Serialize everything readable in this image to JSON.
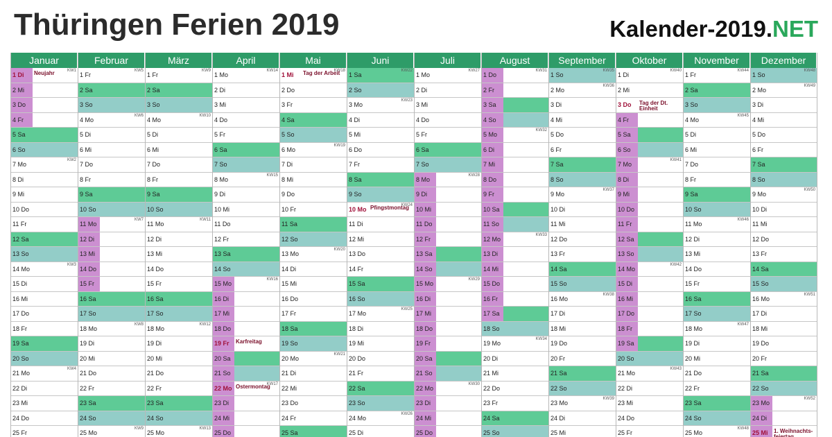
{
  "title": "Thüringen Ferien 2019",
  "brand": {
    "main": "Kalender-2019.",
    "accent": "NET"
  },
  "colors": {
    "header": "#2e9c68",
    "saturday": "#5ecb96",
    "sunday": "#93cdc8",
    "school_holiday": "#cc8fd1",
    "holiday_text": "#a0123a"
  },
  "legend": {
    "saturday": "Sa",
    "sunday": "So"
  },
  "months": [
    {
      "name": "Januar",
      "days": 25,
      "start_weekday": 1,
      "week_start": 1,
      "school_holidays": [
        1,
        2,
        3,
        4
      ]
    },
    {
      "name": "Februar",
      "days": 25,
      "start_weekday": 4,
      "week_start": 5,
      "school_holidays": [
        11,
        12,
        13,
        14,
        15
      ]
    },
    {
      "name": "März",
      "days": 25,
      "start_weekday": 4,
      "week_start": 9,
      "school_holidays": []
    },
    {
      "name": "April",
      "days": 25,
      "start_weekday": 0,
      "week_start": 14,
      "school_holidays": [
        15,
        16,
        17,
        18,
        19,
        20,
        21,
        22,
        23,
        24,
        25
      ]
    },
    {
      "name": "Mai",
      "days": 25,
      "start_weekday": 2,
      "week_start": 18,
      "school_holidays": []
    },
    {
      "name": "Juni",
      "days": 25,
      "start_weekday": 5,
      "week_start": 22,
      "school_holidays": []
    },
    {
      "name": "Juli",
      "days": 25,
      "start_weekday": 0,
      "week_start": 27,
      "school_holidays": [
        8,
        9,
        10,
        11,
        12,
        13,
        14,
        15,
        16,
        17,
        18,
        19,
        20,
        21,
        22,
        23,
        24,
        25
      ]
    },
    {
      "name": "August",
      "days": 25,
      "start_weekday": 3,
      "week_start": 31,
      "school_holidays": [
        1,
        2,
        3,
        4,
        5,
        6,
        7,
        8,
        9,
        10,
        11,
        12,
        13,
        14,
        15,
        16,
        17
      ]
    },
    {
      "name": "September",
      "days": 25,
      "start_weekday": 6,
      "week_start": 35,
      "school_holidays": []
    },
    {
      "name": "Oktober",
      "days": 25,
      "start_weekday": 1,
      "week_start": 40,
      "school_holidays": [
        4,
        5,
        6,
        7,
        8,
        9,
        10,
        11,
        12,
        13,
        14,
        15,
        16,
        17,
        18,
        19
      ]
    },
    {
      "name": "November",
      "days": 25,
      "start_weekday": 4,
      "week_start": 44,
      "school_holidays": []
    },
    {
      "name": "Dezember",
      "days": 25,
      "start_weekday": 6,
      "week_start": 48,
      "school_holidays": [
        23,
        24,
        25
      ]
    }
  ],
  "weekdays": [
    "Mo",
    "Di",
    "Mi",
    "Do",
    "Fr",
    "Sa",
    "So"
  ],
  "holidays": [
    {
      "month": 0,
      "day": 1,
      "name": "Neujahr"
    },
    {
      "month": 3,
      "day": 19,
      "name": "Karfreitag"
    },
    {
      "month": 3,
      "day": 22,
      "name": "Ostermontag"
    },
    {
      "month": 4,
      "day": 1,
      "name": "Tag der Arbeit"
    },
    {
      "month": 5,
      "day": 10,
      "name": "Pfingstmontag"
    },
    {
      "month": 9,
      "day": 3,
      "name": "Tag der Dt.\nEinheit"
    },
    {
      "month": 11,
      "day": 25,
      "name": "1. Weihnachts-\nfeiertag"
    }
  ]
}
